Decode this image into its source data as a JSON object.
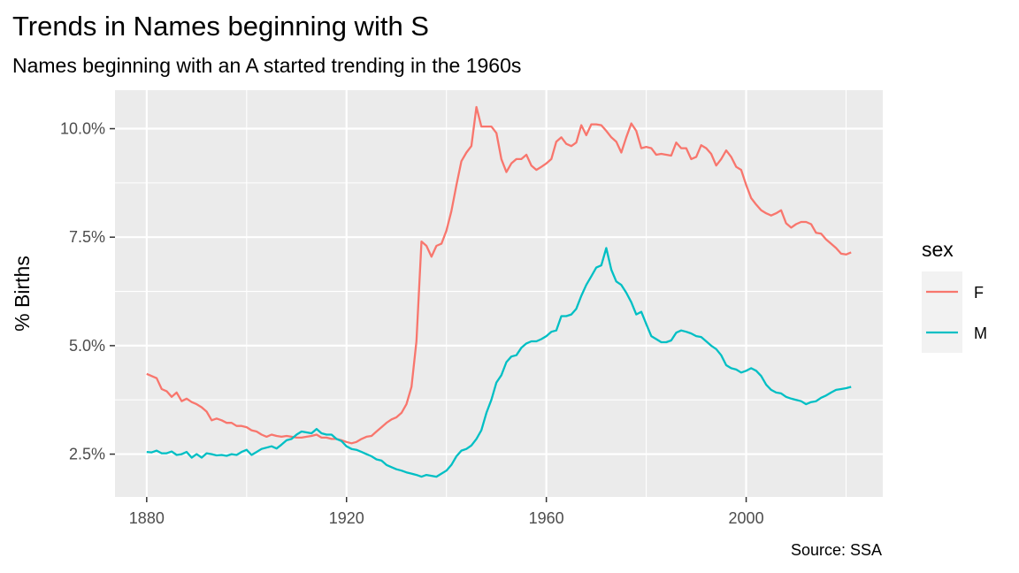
{
  "chart_data": {
    "type": "line",
    "title": "Trends in Names beginning with S",
    "subtitle": "Names beginning with an A started trending in the 1960s",
    "caption": "Source: SSA",
    "xlabel": "",
    "ylabel": "% Births",
    "xlim": [
      1880,
      2021
    ],
    "ylim": [
      1.9,
      10.5
    ],
    "x_ticks": [
      1880,
      1920,
      1960,
      2000
    ],
    "x_tick_labels": [
      "1880",
      "1920",
      "1960",
      "2000"
    ],
    "y_ticks": [
      2.5,
      5.0,
      7.5,
      10.0
    ],
    "y_tick_labels": [
      "2.5%",
      "5.0%",
      "7.5%",
      "10.0%"
    ],
    "grid": true,
    "legend": {
      "title": "sex",
      "position": "right"
    },
    "series": [
      {
        "name": "F",
        "color": "#F8766D",
        "points": [
          [
            1880,
            4.35
          ],
          [
            1882,
            4.25
          ],
          [
            1883,
            4.0
          ],
          [
            1884,
            3.95
          ],
          [
            1885,
            3.82
          ],
          [
            1886,
            3.92
          ],
          [
            1887,
            3.72
          ],
          [
            1888,
            3.78
          ],
          [
            1889,
            3.7
          ],
          [
            1890,
            3.65
          ],
          [
            1891,
            3.58
          ],
          [
            1892,
            3.48
          ],
          [
            1893,
            3.28
          ],
          [
            1894,
            3.32
          ],
          [
            1895,
            3.28
          ],
          [
            1896,
            3.22
          ],
          [
            1897,
            3.22
          ],
          [
            1898,
            3.15
          ],
          [
            1899,
            3.15
          ],
          [
            1900,
            3.12
          ],
          [
            1901,
            3.05
          ],
          [
            1902,
            3.02
          ],
          [
            1903,
            2.95
          ],
          [
            1904,
            2.9
          ],
          [
            1905,
            2.95
          ],
          [
            1906,
            2.92
          ],
          [
            1907,
            2.9
          ],
          [
            1908,
            2.92
          ],
          [
            1909,
            2.9
          ],
          [
            1910,
            2.88
          ],
          [
            1911,
            2.88
          ],
          [
            1912,
            2.9
          ],
          [
            1913,
            2.92
          ],
          [
            1914,
            2.95
          ],
          [
            1915,
            2.88
          ],
          [
            1916,
            2.88
          ],
          [
            1917,
            2.85
          ],
          [
            1918,
            2.85
          ],
          [
            1919,
            2.82
          ],
          [
            1920,
            2.78
          ],
          [
            1921,
            2.75
          ],
          [
            1922,
            2.78
          ],
          [
            1923,
            2.85
          ],
          [
            1924,
            2.9
          ],
          [
            1925,
            2.92
          ],
          [
            1926,
            3.02
          ],
          [
            1927,
            3.12
          ],
          [
            1928,
            3.22
          ],
          [
            1929,
            3.3
          ],
          [
            1930,
            3.35
          ],
          [
            1931,
            3.45
          ],
          [
            1932,
            3.65
          ],
          [
            1933,
            4.05
          ],
          [
            1934,
            5.1
          ],
          [
            1935,
            7.4
          ],
          [
            1936,
            7.3
          ],
          [
            1937,
            7.05
          ],
          [
            1938,
            7.3
          ],
          [
            1939,
            7.35
          ],
          [
            1940,
            7.65
          ],
          [
            1941,
            8.1
          ],
          [
            1942,
            8.7
          ],
          [
            1943,
            9.25
          ],
          [
            1944,
            9.45
          ],
          [
            1945,
            9.6
          ],
          [
            1946,
            10.5
          ],
          [
            1947,
            10.05
          ],
          [
            1948,
            10.05
          ],
          [
            1949,
            10.05
          ],
          [
            1950,
            9.9
          ],
          [
            1951,
            9.3
          ],
          [
            1952,
            9.0
          ],
          [
            1953,
            9.2
          ],
          [
            1954,
            9.3
          ],
          [
            1955,
            9.3
          ],
          [
            1956,
            9.4
          ],
          [
            1957,
            9.15
          ],
          [
            1958,
            9.05
          ],
          [
            1959,
            9.12
          ],
          [
            1960,
            9.2
          ],
          [
            1961,
            9.3
          ],
          [
            1962,
            9.7
          ],
          [
            1963,
            9.8
          ],
          [
            1964,
            9.65
          ],
          [
            1965,
            9.6
          ],
          [
            1966,
            9.68
          ],
          [
            1967,
            10.08
          ],
          [
            1968,
            9.85
          ],
          [
            1969,
            10.1
          ],
          [
            1970,
            10.1
          ],
          [
            1971,
            10.08
          ],
          [
            1972,
            9.95
          ],
          [
            1973,
            9.8
          ],
          [
            1974,
            9.7
          ],
          [
            1975,
            9.45
          ],
          [
            1976,
            9.8
          ],
          [
            1977,
            10.12
          ],
          [
            1978,
            9.95
          ],
          [
            1979,
            9.55
          ],
          [
            1980,
            9.58
          ],
          [
            1981,
            9.55
          ],
          [
            1982,
            9.4
          ],
          [
            1983,
            9.42
          ],
          [
            1984,
            9.4
          ],
          [
            1985,
            9.38
          ],
          [
            1986,
            9.68
          ],
          [
            1987,
            9.55
          ],
          [
            1988,
            9.55
          ],
          [
            1989,
            9.3
          ],
          [
            1990,
            9.35
          ],
          [
            1991,
            9.62
          ],
          [
            1992,
            9.55
          ],
          [
            1993,
            9.42
          ],
          [
            1994,
            9.15
          ],
          [
            1995,
            9.3
          ],
          [
            1996,
            9.5
          ],
          [
            1997,
            9.35
          ],
          [
            1998,
            9.12
          ],
          [
            1999,
            9.05
          ],
          [
            2000,
            8.7
          ],
          [
            2001,
            8.4
          ],
          [
            2002,
            8.25
          ],
          [
            2003,
            8.12
          ],
          [
            2004,
            8.05
          ],
          [
            2005,
            8.0
          ],
          [
            2006,
            8.05
          ],
          [
            2007,
            8.12
          ],
          [
            2008,
            7.82
          ],
          [
            2009,
            7.72
          ],
          [
            2010,
            7.8
          ],
          [
            2011,
            7.85
          ],
          [
            2012,
            7.85
          ],
          [
            2013,
            7.8
          ],
          [
            2014,
            7.6
          ],
          [
            2015,
            7.58
          ],
          [
            2016,
            7.45
          ],
          [
            2017,
            7.35
          ],
          [
            2018,
            7.25
          ],
          [
            2019,
            7.12
          ],
          [
            2020,
            7.1
          ],
          [
            2021,
            7.15
          ]
        ]
      },
      {
        "name": "M",
        "color": "#00BFC4",
        "points": [
          [
            1880,
            2.55
          ],
          [
            1881,
            2.54
          ],
          [
            1882,
            2.58
          ],
          [
            1883,
            2.52
          ],
          [
            1884,
            2.52
          ],
          [
            1885,
            2.56
          ],
          [
            1886,
            2.48
          ],
          [
            1887,
            2.5
          ],
          [
            1888,
            2.55
          ],
          [
            1889,
            2.42
          ],
          [
            1890,
            2.5
          ],
          [
            1891,
            2.42
          ],
          [
            1892,
            2.52
          ],
          [
            1893,
            2.5
          ],
          [
            1894,
            2.47
          ],
          [
            1895,
            2.48
          ],
          [
            1896,
            2.46
          ],
          [
            1897,
            2.5
          ],
          [
            1898,
            2.48
          ],
          [
            1899,
            2.55
          ],
          [
            1900,
            2.6
          ],
          [
            1901,
            2.48
          ],
          [
            1902,
            2.55
          ],
          [
            1903,
            2.62
          ],
          [
            1904,
            2.65
          ],
          [
            1905,
            2.68
          ],
          [
            1906,
            2.63
          ],
          [
            1907,
            2.72
          ],
          [
            1908,
            2.82
          ],
          [
            1909,
            2.85
          ],
          [
            1910,
            2.95
          ],
          [
            1911,
            3.02
          ],
          [
            1912,
            3.0
          ],
          [
            1913,
            2.98
          ],
          [
            1914,
            3.08
          ],
          [
            1915,
            2.98
          ],
          [
            1916,
            2.95
          ],
          [
            1917,
            2.95
          ],
          [
            1918,
            2.85
          ],
          [
            1919,
            2.8
          ],
          [
            1920,
            2.68
          ],
          [
            1921,
            2.62
          ],
          [
            1922,
            2.6
          ],
          [
            1923,
            2.55
          ],
          [
            1924,
            2.5
          ],
          [
            1925,
            2.45
          ],
          [
            1926,
            2.38
          ],
          [
            1927,
            2.35
          ],
          [
            1928,
            2.25
          ],
          [
            1929,
            2.2
          ],
          [
            1930,
            2.15
          ],
          [
            1931,
            2.12
          ],
          [
            1932,
            2.08
          ],
          [
            1933,
            2.05
          ],
          [
            1934,
            2.02
          ],
          [
            1935,
            1.98
          ],
          [
            1936,
            2.02
          ],
          [
            1937,
            2.0
          ],
          [
            1938,
            1.98
          ],
          [
            1939,
            2.05
          ],
          [
            1940,
            2.12
          ],
          [
            1941,
            2.25
          ],
          [
            1942,
            2.45
          ],
          [
            1943,
            2.58
          ],
          [
            1944,
            2.62
          ],
          [
            1945,
            2.7
          ],
          [
            1946,
            2.85
          ],
          [
            1947,
            3.05
          ],
          [
            1948,
            3.45
          ],
          [
            1949,
            3.75
          ],
          [
            1950,
            4.15
          ],
          [
            1951,
            4.32
          ],
          [
            1952,
            4.62
          ],
          [
            1953,
            4.75
          ],
          [
            1954,
            4.78
          ],
          [
            1955,
            4.95
          ],
          [
            1956,
            5.05
          ],
          [
            1957,
            5.1
          ],
          [
            1958,
            5.1
          ],
          [
            1959,
            5.15
          ],
          [
            1960,
            5.22
          ],
          [
            1961,
            5.32
          ],
          [
            1962,
            5.35
          ],
          [
            1963,
            5.68
          ],
          [
            1964,
            5.68
          ],
          [
            1965,
            5.72
          ],
          [
            1966,
            5.85
          ],
          [
            1967,
            6.15
          ],
          [
            1968,
            6.4
          ],
          [
            1969,
            6.6
          ],
          [
            1970,
            6.8
          ],
          [
            1971,
            6.85
          ],
          [
            1972,
            7.25
          ],
          [
            1973,
            6.75
          ],
          [
            1974,
            6.48
          ],
          [
            1975,
            6.4
          ],
          [
            1976,
            6.22
          ],
          [
            1977,
            6.0
          ],
          [
            1978,
            5.72
          ],
          [
            1979,
            5.78
          ],
          [
            1980,
            5.5
          ],
          [
            1981,
            5.22
          ],
          [
            1982,
            5.15
          ],
          [
            1983,
            5.08
          ],
          [
            1984,
            5.08
          ],
          [
            1985,
            5.12
          ],
          [
            1986,
            5.3
          ],
          [
            1987,
            5.35
          ],
          [
            1988,
            5.32
          ],
          [
            1989,
            5.28
          ],
          [
            1990,
            5.22
          ],
          [
            1991,
            5.2
          ],
          [
            1992,
            5.1
          ],
          [
            1993,
            5.0
          ],
          [
            1994,
            4.92
          ],
          [
            1995,
            4.78
          ],
          [
            1996,
            4.55
          ],
          [
            1997,
            4.48
          ],
          [
            1998,
            4.45
          ],
          [
            1999,
            4.38
          ],
          [
            2000,
            4.42
          ],
          [
            2001,
            4.48
          ],
          [
            2002,
            4.42
          ],
          [
            2003,
            4.3
          ],
          [
            2004,
            4.1
          ],
          [
            2005,
            3.98
          ],
          [
            2006,
            3.92
          ],
          [
            2007,
            3.9
          ],
          [
            2008,
            3.82
          ],
          [
            2009,
            3.78
          ],
          [
            2010,
            3.75
          ],
          [
            2011,
            3.72
          ],
          [
            2012,
            3.65
          ],
          [
            2013,
            3.7
          ],
          [
            2014,
            3.72
          ],
          [
            2015,
            3.8
          ],
          [
            2016,
            3.85
          ],
          [
            2017,
            3.92
          ],
          [
            2018,
            3.98
          ],
          [
            2019,
            4.0
          ],
          [
            2020,
            4.02
          ],
          [
            2021,
            4.05
          ]
        ]
      }
    ]
  }
}
